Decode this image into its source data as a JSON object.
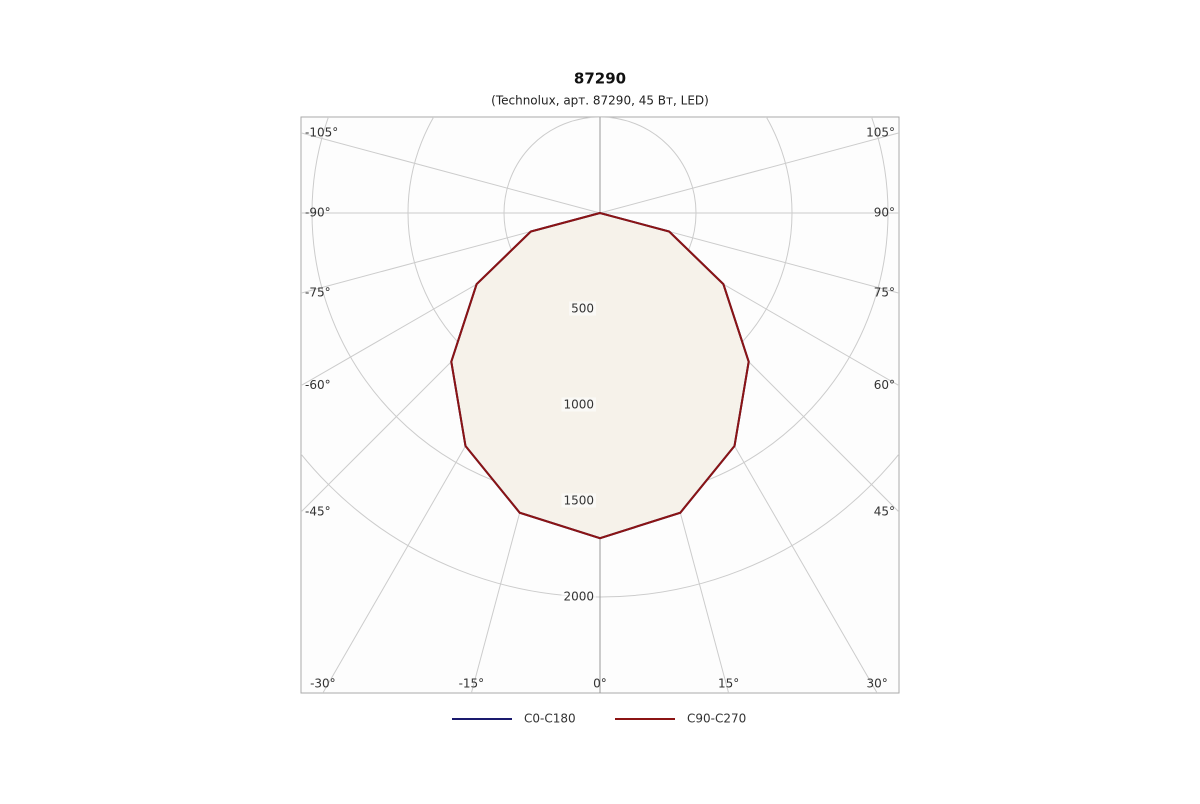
{
  "chart_data": {
    "type": "polar",
    "title": "87290",
    "subtitle": "(Technolux, арт. 87290, 45 Вт, LED)",
    "x": [
      -90,
      -75,
      -60,
      -45,
      -30,
      -15,
      0,
      15,
      30,
      45,
      60,
      75,
      90
    ],
    "series": [
      {
        "name": "C0-C180",
        "color": "#1a1a6e",
        "values": [
          0,
          373,
          742,
          1095,
          1401,
          1616,
          1694,
          1616,
          1401,
          1095,
          742,
          373,
          0
        ]
      },
      {
        "name": "C90-C270",
        "color": "#8b1414",
        "values": [
          0,
          373,
          742,
          1095,
          1401,
          1616,
          1694,
          1616,
          1401,
          1095,
          742,
          373,
          0
        ]
      }
    ],
    "fill_color": "#f6f2ea",
    "rlim": [
      0,
      2500
    ],
    "rticks": [
      500,
      1000,
      1500,
      2000
    ],
    "xticks": [
      {
        "value": -105,
        "label": "-105°"
      },
      {
        "value": -90,
        "label": "-90°"
      },
      {
        "value": -75,
        "label": "-75°"
      },
      {
        "value": -60,
        "label": "-60°"
      },
      {
        "value": -45,
        "label": "-45°"
      },
      {
        "value": -30,
        "label": "-30°"
      },
      {
        "value": -15,
        "label": "-15°"
      },
      {
        "value": 0,
        "label": "0°"
      },
      {
        "value": 15,
        "label": "15°"
      },
      {
        "value": 30,
        "label": "30°"
      },
      {
        "value": 45,
        "label": "45°"
      },
      {
        "value": 60,
        "label": "60°"
      },
      {
        "value": 75,
        "label": "75°"
      },
      {
        "value": 90,
        "label": "90°"
      },
      {
        "value": 105,
        "label": "105°"
      }
    ],
    "grid": true,
    "legend": "bottom"
  }
}
